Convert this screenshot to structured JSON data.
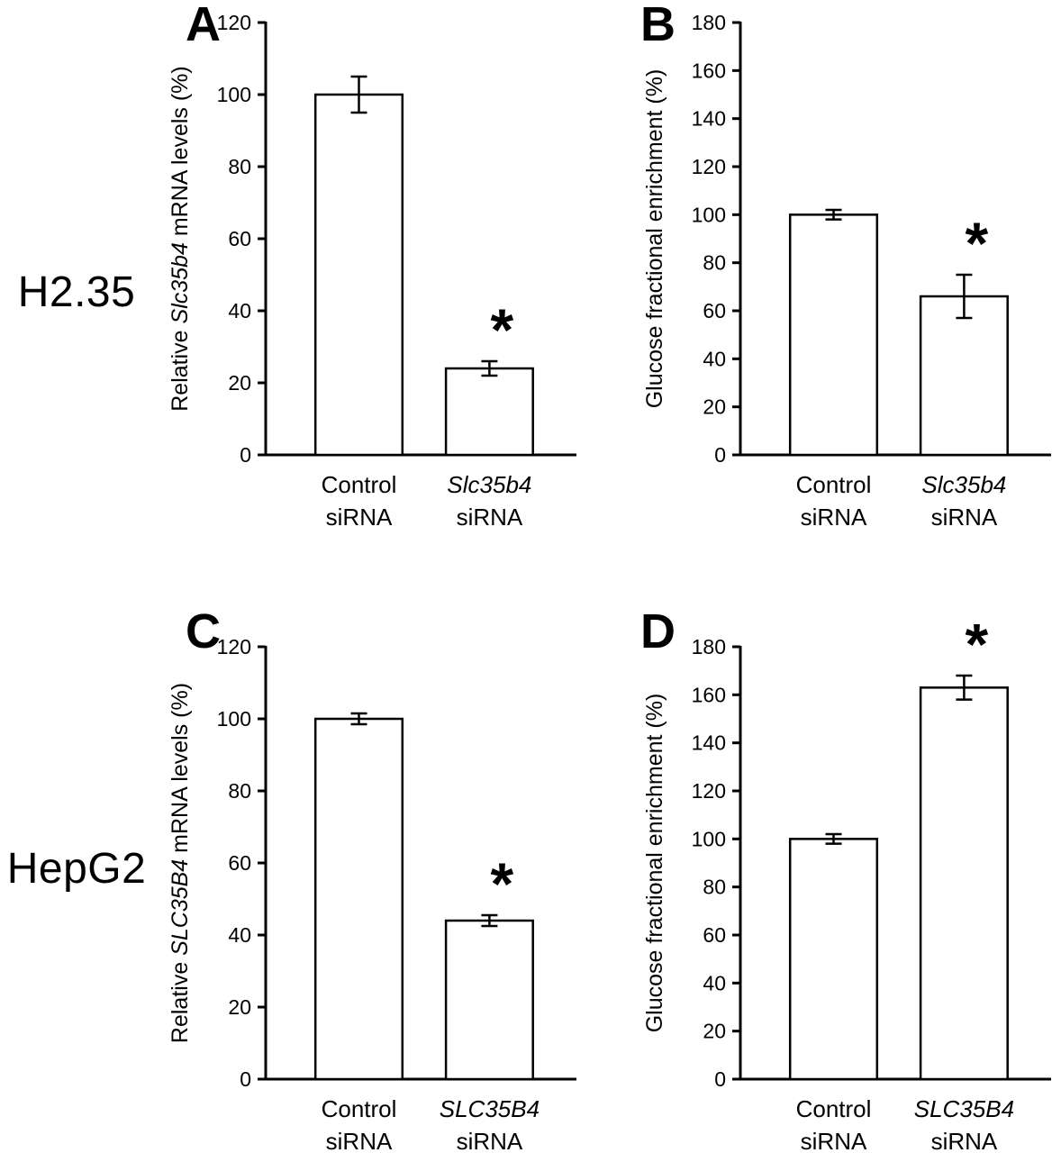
{
  "figure": {
    "background": "#ffffff",
    "axis_color": "#000000",
    "rows": [
      {
        "label": "H2.35"
      },
      {
        "label": "HepG2"
      }
    ]
  },
  "chart_data": [
    {
      "panel": "A",
      "type": "bar",
      "ylabel_parts": [
        {
          "text": "Relative ",
          "italic": false
        },
        {
          "text": "Slc35b4",
          "italic": true
        },
        {
          "text": " mRNA levels (%)",
          "italic": false
        }
      ],
      "ylim": [
        0,
        120
      ],
      "ytick_step": 20,
      "grid": false,
      "bar_fill": "#ffffff",
      "bar_stroke": "#000000",
      "categories": [
        {
          "lines": [
            "Control",
            "siRNA"
          ],
          "italic_line0": false
        },
        {
          "lines": [
            "Slc35b4",
            "siRNA"
          ],
          "italic_line0": true
        }
      ],
      "values": [
        100,
        24
      ],
      "errors": [
        5,
        2
      ],
      "significant": [
        false,
        true
      ],
      "significance_symbol": "*"
    },
    {
      "panel": "B",
      "type": "bar",
      "ylabel_parts": [
        {
          "text": "Glucose fractional enrichment (%)",
          "italic": false
        }
      ],
      "ylim": [
        0,
        180
      ],
      "ytick_step": 20,
      "grid": false,
      "bar_fill": "#ffffff",
      "bar_stroke": "#000000",
      "categories": [
        {
          "lines": [
            "Control",
            "siRNA"
          ],
          "italic_line0": false
        },
        {
          "lines": [
            "Slc35b4",
            "siRNA"
          ],
          "italic_line0": true
        }
      ],
      "values": [
        100,
        66
      ],
      "errors": [
        2,
        9
      ],
      "significant": [
        false,
        true
      ],
      "significance_symbol": "*"
    },
    {
      "panel": "C",
      "type": "bar",
      "ylabel_parts": [
        {
          "text": "Relative ",
          "italic": false
        },
        {
          "text": "SLC35B4",
          "italic": true
        },
        {
          "text": " mRNA levels (%)",
          "italic": false
        }
      ],
      "ylim": [
        0,
        120
      ],
      "ytick_step": 20,
      "grid": false,
      "bar_fill": "#ffffff",
      "bar_stroke": "#000000",
      "categories": [
        {
          "lines": [
            "Control",
            "siRNA"
          ],
          "italic_line0": false
        },
        {
          "lines": [
            "SLC35B4",
            "siRNA"
          ],
          "italic_line0": true
        }
      ],
      "values": [
        100,
        44
      ],
      "errors": [
        1.5,
        1.5
      ],
      "significant": [
        false,
        true
      ],
      "significance_symbol": "*"
    },
    {
      "panel": "D",
      "type": "bar",
      "ylabel_parts": [
        {
          "text": "Glucose fractional enrichment (%)",
          "italic": false
        }
      ],
      "ylim": [
        0,
        180
      ],
      "ytick_step": 20,
      "grid": false,
      "bar_fill": "#ffffff",
      "bar_stroke": "#000000",
      "categories": [
        {
          "lines": [
            "Control",
            "siRNA"
          ],
          "italic_line0": false
        },
        {
          "lines": [
            "SLC35B4",
            "siRNA"
          ],
          "italic_line0": true
        }
      ],
      "values": [
        100,
        163
      ],
      "errors": [
        2,
        5
      ],
      "significant": [
        false,
        true
      ],
      "significance_symbol": "*"
    }
  ]
}
